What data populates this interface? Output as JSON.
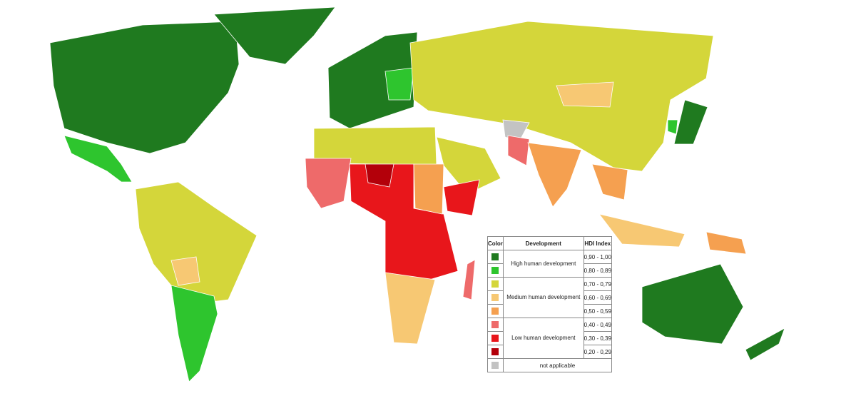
{
  "legend": {
    "headers": [
      "Color",
      "Development",
      "HDI Index"
    ],
    "groups": [
      {
        "label": "High human development",
        "rows": [
          {
            "color": "#1f7a1f",
            "range": "0,90 - 1,00"
          },
          {
            "color": "#2ec52e",
            "range": "0,80 - 0,89"
          }
        ]
      },
      {
        "label": "Medium human development",
        "rows": [
          {
            "color": "#d4d63a",
            "range": "0,70 - 0,79"
          },
          {
            "color": "#f7c873",
            "range": "0,60 - 0,69"
          },
          {
            "color": "#f5a050",
            "range": "0,50 - 0,59"
          }
        ]
      },
      {
        "label": "Low human development",
        "rows": [
          {
            "color": "#ee6a6a",
            "range": "0,40 - 0,49"
          },
          {
            "color": "#e8161b",
            "range": "0,30 - 0,39"
          },
          {
            "color": "#b3000a",
            "range": "0,20 - 0,29"
          }
        ]
      }
    ],
    "not_applicable": {
      "color": "#c3c3c3",
      "label": "not applicable"
    }
  }
}
